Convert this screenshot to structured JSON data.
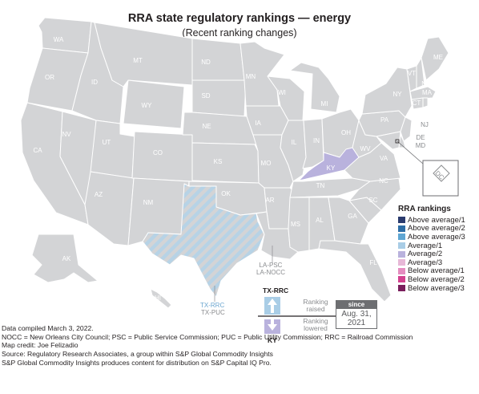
{
  "title": "RRA state regulatory rankings — energy",
  "subtitle": "(Recent ranking changes)",
  "colors": {
    "state_fill": "#d3d4d6",
    "state_stroke": "#ffffff",
    "ky_fill": "#b9b2dd",
    "tx_stripe_a": "#b7d3e6",
    "tx_stripe_b": "#d3d4d6"
  },
  "map": {
    "states": [
      {
        "abbr": "WA",
        "ranking": null
      },
      {
        "abbr": "OR",
        "ranking": null
      },
      {
        "abbr": "CA",
        "ranking": null
      },
      {
        "abbr": "NV",
        "ranking": null
      },
      {
        "abbr": "ID",
        "ranking": null
      },
      {
        "abbr": "MT",
        "ranking": null
      },
      {
        "abbr": "WY",
        "ranking": null
      },
      {
        "abbr": "UT",
        "ranking": null
      },
      {
        "abbr": "AZ",
        "ranking": null
      },
      {
        "abbr": "CO",
        "ranking": null
      },
      {
        "abbr": "NM",
        "ranking": null
      },
      {
        "abbr": "ND",
        "ranking": null
      },
      {
        "abbr": "SD",
        "ranking": null
      },
      {
        "abbr": "NE",
        "ranking": null
      },
      {
        "abbr": "KS",
        "ranking": null
      },
      {
        "abbr": "OK",
        "ranking": null
      },
      {
        "abbr": "MN",
        "ranking": null
      },
      {
        "abbr": "IA",
        "ranking": null
      },
      {
        "abbr": "MO",
        "ranking": null
      },
      {
        "abbr": "AR",
        "ranking": null
      },
      {
        "abbr": "WI",
        "ranking": null
      },
      {
        "abbr": "IL",
        "ranking": null
      },
      {
        "abbr": "MS",
        "ranking": null
      },
      {
        "abbr": "MI",
        "ranking": null
      },
      {
        "abbr": "IN",
        "ranking": null
      },
      {
        "abbr": "TN",
        "ranking": null
      },
      {
        "abbr": "AL",
        "ranking": null
      },
      {
        "abbr": "OH",
        "ranking": null
      },
      {
        "abbr": "GA",
        "ranking": null
      },
      {
        "abbr": "FL",
        "ranking": null
      },
      {
        "abbr": "SC",
        "ranking": null
      },
      {
        "abbr": "NC",
        "ranking": null
      },
      {
        "abbr": "VA",
        "ranking": null
      },
      {
        "abbr": "WV",
        "ranking": null
      },
      {
        "abbr": "PA",
        "ranking": null
      },
      {
        "abbr": "NY",
        "ranking": null
      },
      {
        "abbr": "VT",
        "ranking": null
      },
      {
        "abbr": "NH",
        "ranking": null
      },
      {
        "abbr": "ME",
        "ranking": null
      },
      {
        "abbr": "MA",
        "ranking": null
      },
      {
        "abbr": "CT",
        "ranking": null
      },
      {
        "abbr": "RI",
        "ranking": null
      },
      {
        "abbr": "NJ",
        "ranking": null
      },
      {
        "abbr": "DE",
        "ranking": null
      },
      {
        "abbr": "MD",
        "ranking": null
      },
      {
        "abbr": "AK",
        "ranking": null
      },
      {
        "abbr": "HI",
        "ranking": null
      },
      {
        "abbr": "KY",
        "ranking": "Average/2",
        "change": "raised"
      },
      {
        "abbr": "TX",
        "ranking": "Average/1",
        "change": "raised",
        "note": "TX-RRC raised; TX-PUC unchanged"
      },
      {
        "abbr": "LA",
        "ranking": null
      }
    ],
    "dc_label": "DC",
    "callouts": {
      "la": [
        "LA-PSC",
        "LA-NOCC"
      ],
      "tx_rrc": "TX-RRC",
      "tx_puc": "TX-PUC"
    }
  },
  "key": {
    "tx_label": "TX-RRC",
    "ky_label": "KY",
    "raised": "Ranking raised",
    "lowered": "Ranking lowered",
    "since_header": "since",
    "since_value": "Aug. 31, 2021"
  },
  "legend": {
    "title": "RRA rankings",
    "items": [
      {
        "label": "Above average/1",
        "color": "#2b3b6e"
      },
      {
        "label": "Above average/2",
        "color": "#2e6ea6"
      },
      {
        "label": "Above average/3",
        "color": "#5fa6d3"
      },
      {
        "label": "Average/1",
        "color": "#a9cde6"
      },
      {
        "label": "Average/2",
        "color": "#b9b2dd"
      },
      {
        "label": "Average/3",
        "color": "#e7b8d7"
      },
      {
        "label": "Below average/1",
        "color": "#e58cc0"
      },
      {
        "label": "Below average/2",
        "color": "#d3418f"
      },
      {
        "label": "Below average/3",
        "color": "#7a1e5c"
      }
    ]
  },
  "footer": [
    "Data compiled March 3, 2022.",
    "NOCC = New Orleans City Council; PSC = Public Service Commission; PUC = Public Utility Commission; RRC = Railroad Commission",
    "Map credit: Joe Felizadio",
    "Source: Regulatory Research Associates, a group within S&P Global Commodity Insights",
    "S&P Global Commodity Insights produces content for distribution on S&P Capital IQ Pro."
  ]
}
